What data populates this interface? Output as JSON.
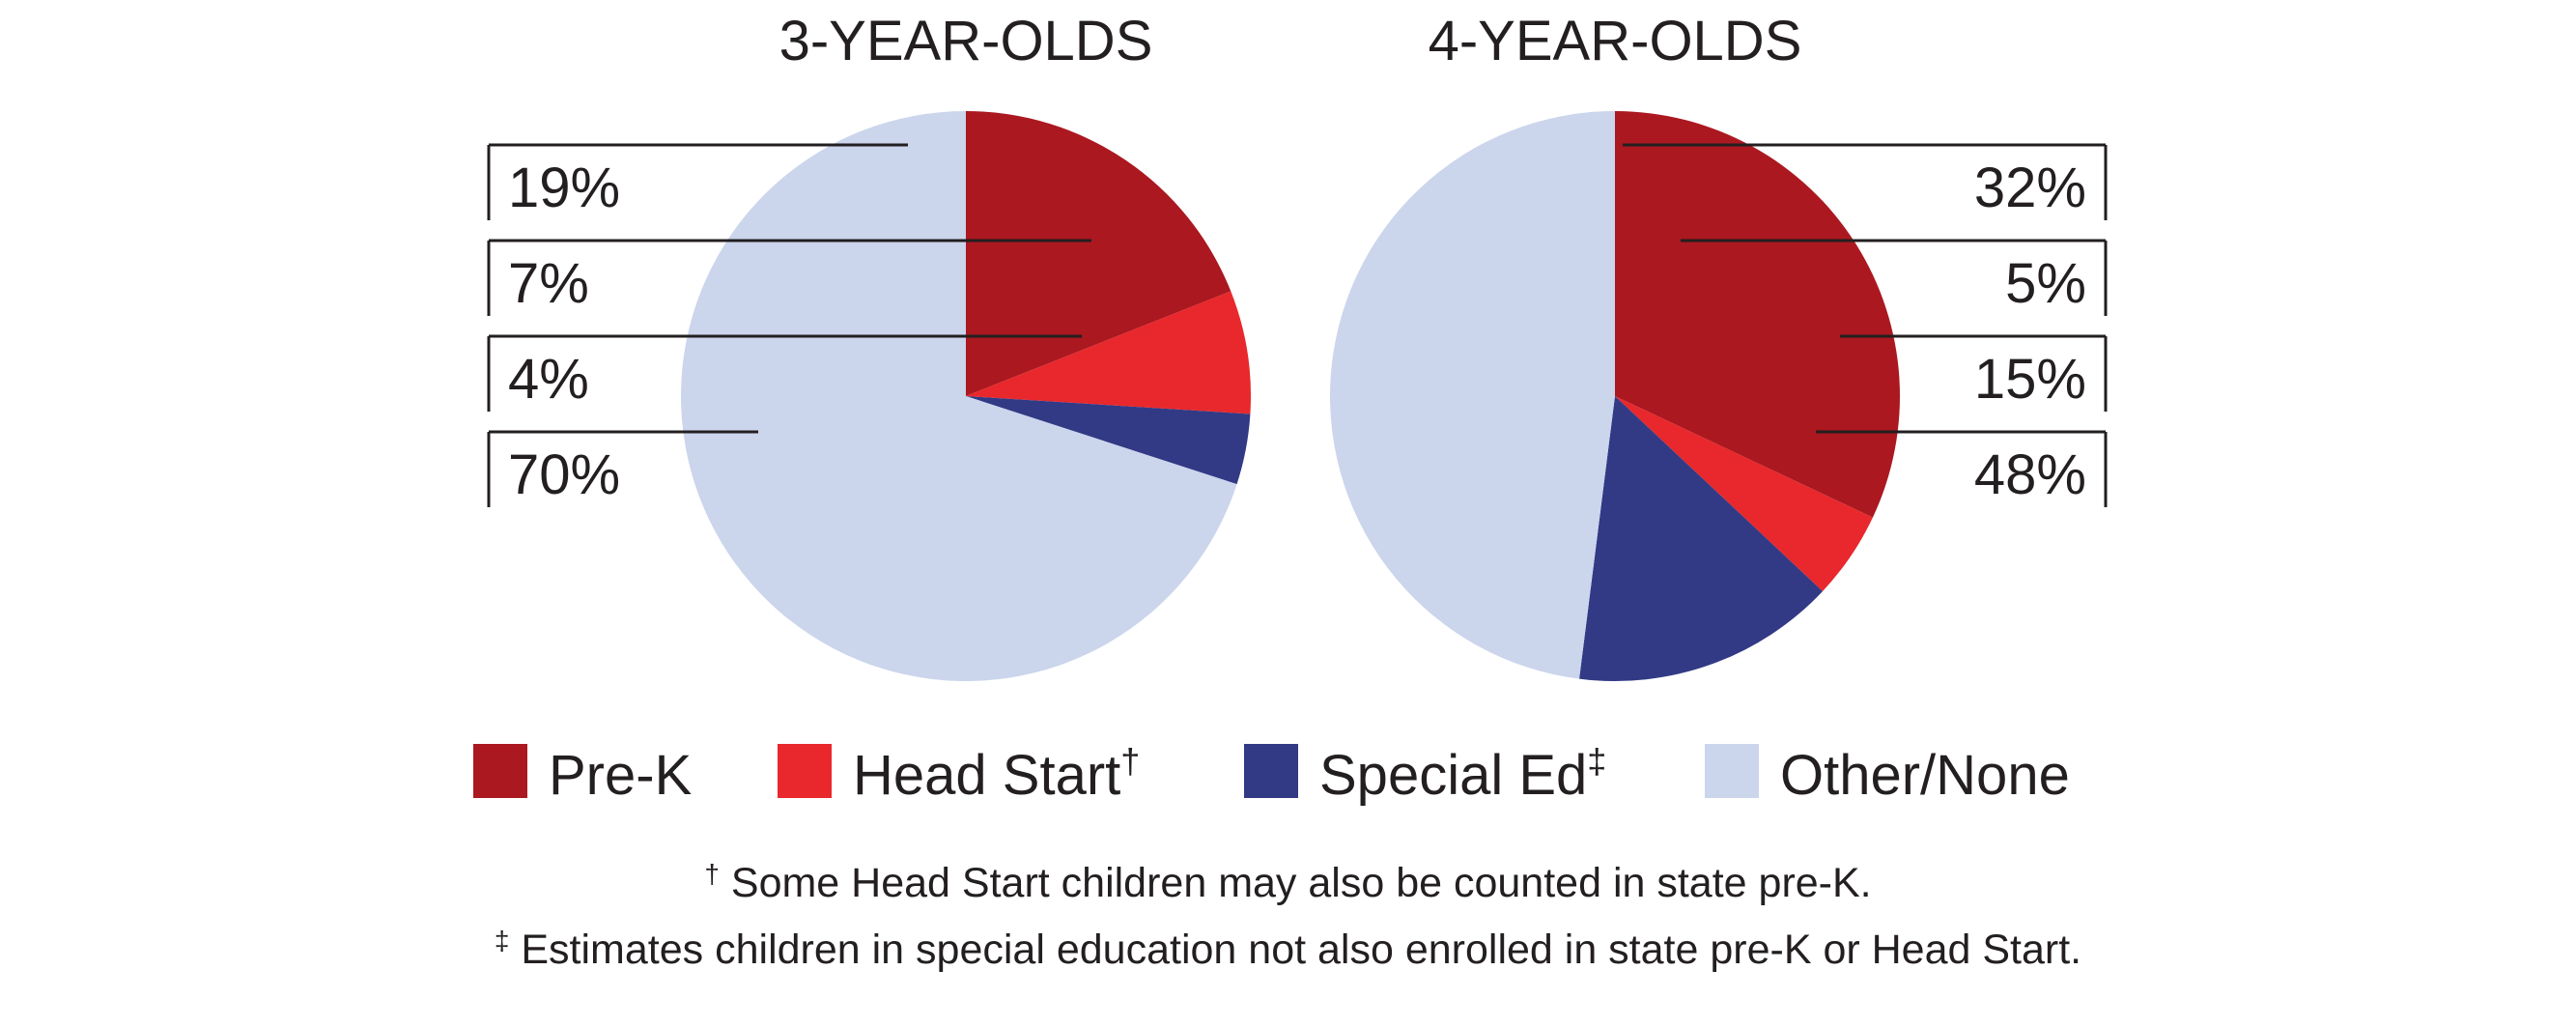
{
  "chart_data": [
    {
      "type": "pie",
      "title": "3-YEAR-OLDS",
      "categories": [
        "Pre-K",
        "Head Start",
        "Special Ed",
        "Other/None"
      ],
      "values": [
        19,
        7,
        4,
        70
      ],
      "labels": [
        "19%",
        "7%",
        "4%",
        "70%"
      ],
      "label_side": "left"
    },
    {
      "type": "pie",
      "title": "4-YEAR-OLDS",
      "categories": [
        "Pre-K",
        "Head Start",
        "Special Ed",
        "Other/None"
      ],
      "values": [
        32,
        5,
        15,
        48
      ],
      "labels": [
        "32%",
        "5%",
        "15%",
        "48%"
      ],
      "label_side": "right"
    }
  ],
  "legend": [
    {
      "label": "Pre-K",
      "mark": "",
      "color": "#ab1820"
    },
    {
      "label": "Head Start",
      "mark": "†",
      "color": "#e8282c"
    },
    {
      "label": "Special Ed",
      "mark": "‡",
      "color": "#323a85"
    },
    {
      "label": "Other/None",
      "mark": "",
      "color": "#cbd5ec"
    }
  ],
  "colors": {
    "Pre-K": "#ab1820",
    "Head Start": "#e8282c",
    "Special Ed": "#323a85",
    "Other/None": "#cbd5ec"
  },
  "footnotes": [
    {
      "mark": "†",
      "text": "Some Head Start children may also be counted in state pre-K."
    },
    {
      "mark": "‡",
      "text": "Estimates children in special education not also enrolled in state pre-K or Head Start."
    }
  ]
}
